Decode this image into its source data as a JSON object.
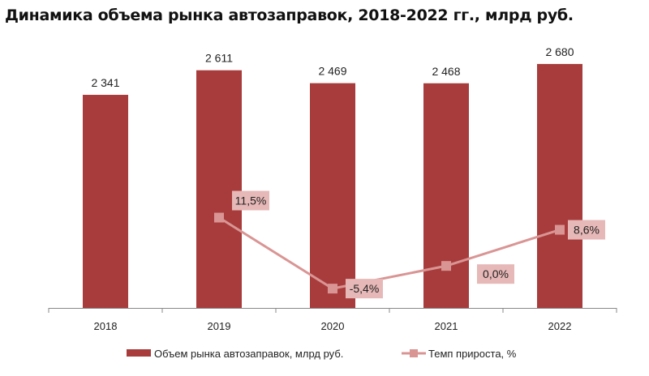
{
  "chart_data": {
    "type": "bar+line",
    "title": "Динамика объема рынка автозаправок, 2018-2022 гг., млрд руб.",
    "categories": [
      "2018",
      "2019",
      "2020",
      "2021",
      "2022"
    ],
    "series": [
      {
        "name": "Объем рынка автозаправок, млрд руб.",
        "type": "bar",
        "axis": "primary",
        "values": [
          2341,
          2611,
          2469,
          2468,
          2680
        ],
        "labels": [
          "2 341",
          "2 611",
          "2 469",
          "2 468",
          "2 680"
        ],
        "color": "#a83c3c"
      },
      {
        "name": "Темп прироста, %",
        "type": "line",
        "axis": "secondary",
        "values": [
          null,
          11.5,
          -5.4,
          0.0,
          8.6
        ],
        "labels": [
          "",
          "11,5%",
          "-5,4%",
          "0,0%",
          "8,6%"
        ],
        "color": "#d99594",
        "label_bg": "#e6b8b7"
      }
    ],
    "primary_ylim": [
      0,
      3000
    ],
    "secondary_ylim": [
      -10,
      55
    ],
    "grid": false,
    "legend": "bottom"
  }
}
